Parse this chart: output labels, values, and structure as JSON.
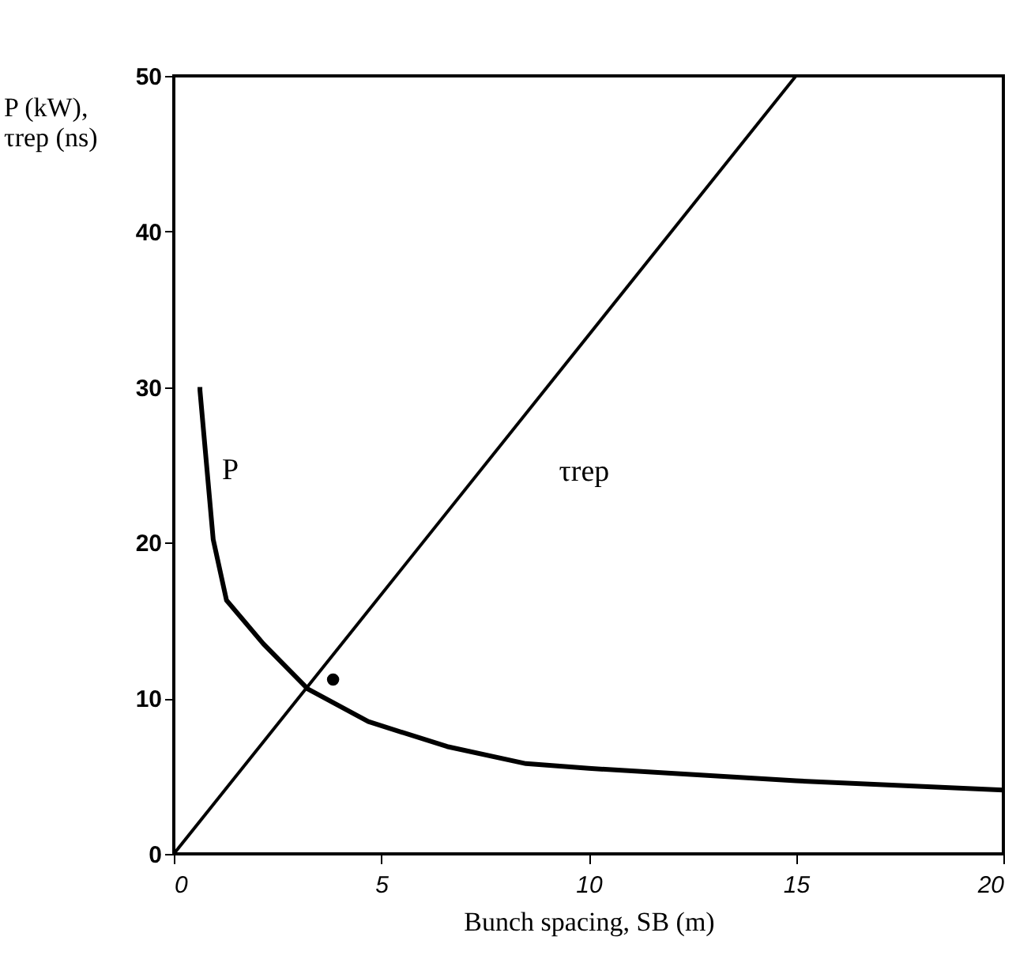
{
  "chart_data": {
    "type": "line",
    "xlabel": "Bunch spacing,   SB (m)",
    "ylabel": "P (kW),\nτrep (ns)",
    "xlim": [
      0,
      20
    ],
    "ylim": [
      0,
      50
    ],
    "xticks": [
      0,
      5,
      10,
      15,
      20
    ],
    "yticks": [
      0,
      10,
      20,
      30,
      40,
      50
    ],
    "grid": false,
    "marker": "none",
    "line_style": "solid",
    "series": [
      {
        "name": "P",
        "color": "#000000",
        "x": [
          0.63,
          0.63,
          0.95,
          1.27,
          2.16,
          3.23,
          4.69,
          6.59,
          8.49,
          10,
          15,
          20
        ],
        "values": [
          30,
          29.8,
          20.2,
          16.3,
          13.5,
          10.6,
          8.5,
          6.9,
          5.8,
          5.5,
          4.7,
          4.1
        ]
      },
      {
        "name": "τrep",
        "color": "#000000",
        "x": [
          0,
          15
        ],
        "values": [
          0,
          50
        ]
      },
      {
        "type": "scatter",
        "color": "#000000",
        "marker": "circle",
        "x": [
          3.84
        ],
        "values": [
          11.2
        ]
      }
    ]
  }
}
